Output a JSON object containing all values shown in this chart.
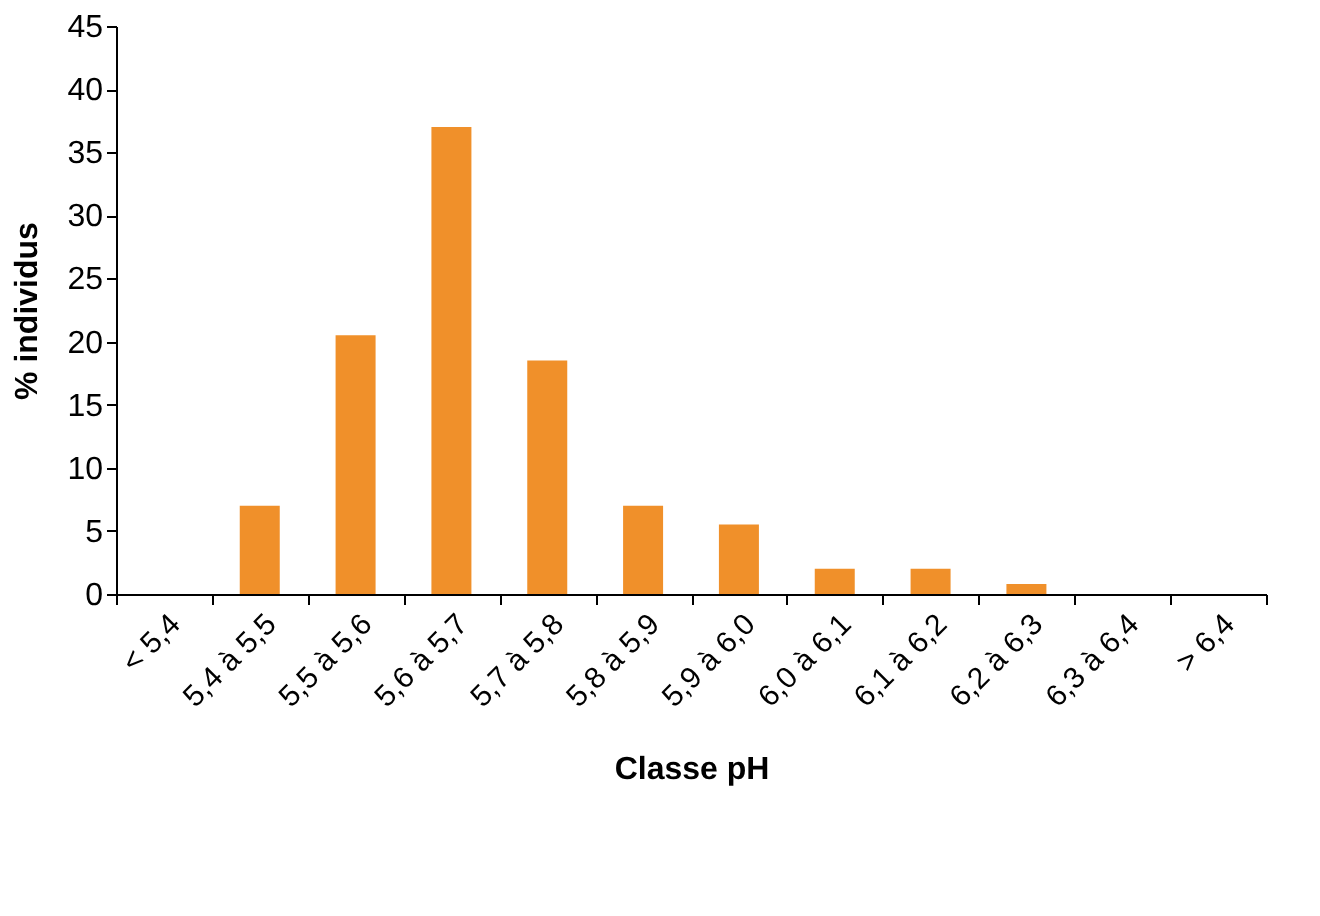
{
  "chart_data": {
    "type": "bar",
    "xlabel": "Classe pH",
    "ylabel": "% individus",
    "categories": [
      "< 5,4",
      "5,4 à 5,5",
      "5,5 à 5,6",
      "5,6 à 5,7",
      "5,7 à 5,8",
      "5,8 à 5,9",
      "5,9 à 6,0",
      "6,0 à 6,1",
      "6,1 à 6,2",
      "6,2 à 6,3",
      "6,3 à 6,4",
      "> 6,4"
    ],
    "values": [
      0,
      7,
      20.5,
      37,
      18.5,
      7,
      5.5,
      2,
      2,
      0.8,
      0,
      0
    ],
    "color": "#f0902a",
    "ylim": [
      0,
      45
    ],
    "yticks": [
      0,
      5,
      10,
      15,
      20,
      25,
      30,
      35,
      40,
      45
    ],
    "grid": false
  }
}
